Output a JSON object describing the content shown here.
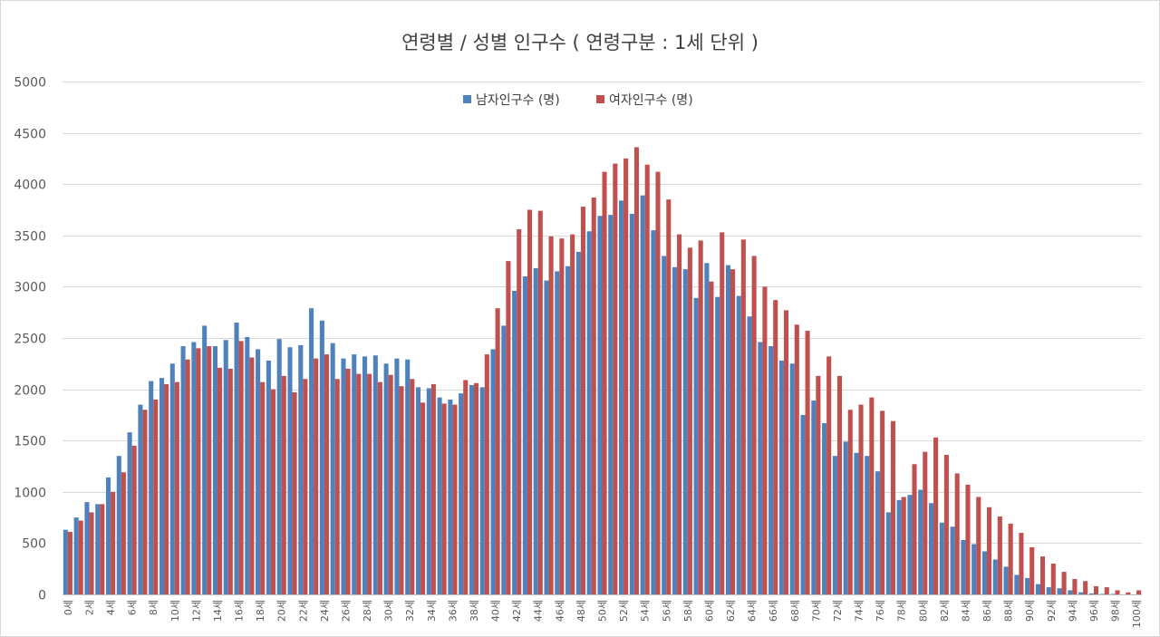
{
  "chart_data": {
    "type": "bar",
    "title": "연령별  / 성별 인구수 ( 연령구분 : 1세 단위 )",
    "xlabel": "",
    "ylabel": "",
    "ylim": [
      0,
      5000
    ],
    "y_ticks": [
      "0",
      "500",
      "1000",
      "1500",
      "2000",
      "2500",
      "3000",
      "3500",
      "4000",
      "4500",
      "5000"
    ],
    "y_tick_values": [
      0,
      500,
      1000,
      1500,
      2000,
      2500,
      3000,
      3500,
      4000,
      4500,
      5000
    ],
    "grid": true,
    "legend_position": "top-center",
    "categories": [
      "0세",
      "1세",
      "2세",
      "3세",
      "4세",
      "5세",
      "6세",
      "7세",
      "8세",
      "9세",
      "10세",
      "11세",
      "12세",
      "13세",
      "14세",
      "15세",
      "16세",
      "17세",
      "18세",
      "19세",
      "20세",
      "21세",
      "22세",
      "23세",
      "24세",
      "25세",
      "26세",
      "27세",
      "28세",
      "29세",
      "30세",
      "31세",
      "32세",
      "33세",
      "34세",
      "35세",
      "36세",
      "37세",
      "38세",
      "39세",
      "40세",
      "41세",
      "42세",
      "43세",
      "44세",
      "45세",
      "46세",
      "47세",
      "48세",
      "49세",
      "50세",
      "51세",
      "52세",
      "53세",
      "54세",
      "55세",
      "56세",
      "57세",
      "58세",
      "59세",
      "60세",
      "61세",
      "62세",
      "63세",
      "64세",
      "65세",
      "66세",
      "67세",
      "68세",
      "69세",
      "70세",
      "71세",
      "72세",
      "73세",
      "74세",
      "75세",
      "76세",
      "77세",
      "78세",
      "79세",
      "80세",
      "81세",
      "82세",
      "83세",
      "84세",
      "85세",
      "86세",
      "87세",
      "88세",
      "89세",
      "90세",
      "91세",
      "92세",
      "93세",
      "94세",
      "95세",
      "96세",
      "97세",
      "98세",
      "99세",
      "100세"
    ],
    "x_tick_labels": [
      "0세",
      "2세",
      "4세",
      "6세",
      "8세",
      "10세",
      "12세",
      "14세",
      "16세",
      "18세",
      "20세",
      "22세",
      "24세",
      "26세",
      "28세",
      "30세",
      "32세",
      "34세",
      "36세",
      "38세",
      "40세",
      "42세",
      "44세",
      "46세",
      "48세",
      "50세",
      "52세",
      "54세",
      "56세",
      "58세",
      "60세",
      "62세",
      "64세",
      "66세",
      "68세",
      "70세",
      "72세",
      "74세",
      "76세",
      "78세",
      "80세",
      "82세",
      "84세",
      "86세",
      "88세",
      "90세",
      "92세",
      "94세",
      "96세",
      "98세",
      "100세"
    ],
    "series": [
      {
        "name": "남자인구수 (명)",
        "color": "#4f81bd",
        "values": [
          630,
          750,
          900,
          880,
          1140,
          1350,
          1580,
          1850,
          2080,
          2110,
          2250,
          2420,
          2460,
          2620,
          2420,
          2480,
          2650,
          2510,
          2390,
          2280,
          2490,
          2410,
          2430,
          2790,
          2670,
          2450,
          2300,
          2340,
          2320,
          2330,
          2250,
          2300,
          2290,
          2020,
          2010,
          1920,
          1900,
          1960,
          2040,
          2020,
          2390,
          2620,
          2960,
          3100,
          3180,
          3060,
          3150,
          3200,
          3340,
          3540,
          3690,
          3700,
          3840,
          3710,
          3890,
          3550,
          3300,
          3190,
          3170,
          2890,
          3230,
          2900,
          3210,
          2910,
          2710,
          2460,
          2420,
          2280,
          2250,
          1750,
          1890,
          1670,
          1350,
          1490,
          1380,
          1350,
          1200,
          800,
          920,
          970,
          1020,
          890,
          700,
          660,
          530,
          490,
          420,
          340,
          270,
          190,
          160,
          100,
          70,
          60,
          40,
          20,
          10,
          5,
          5,
          0,
          0
        ]
      },
      {
        "name": "여자인구수 (명)",
        "color": "#c0504d",
        "values": [
          610,
          720,
          800,
          880,
          1000,
          1190,
          1450,
          1800,
          1900,
          2050,
          2070,
          2290,
          2400,
          2420,
          2210,
          2200,
          2470,
          2310,
          2070,
          2000,
          2130,
          1970,
          2100,
          2300,
          2340,
          2100,
          2200,
          2150,
          2150,
          2070,
          2140,
          2030,
          2100,
          1870,
          2050,
          1860,
          1850,
          2090,
          2060,
          2340,
          2790,
          3250,
          3560,
          3750,
          3740,
          3490,
          3470,
          3510,
          3780,
          3870,
          4120,
          4200,
          4250,
          4360,
          4190,
          4120,
          3850,
          3510,
          3380,
          3450,
          3050,
          3530,
          3170,
          3460,
          3300,
          3000,
          2870,
          2770,
          2630,
          2570,
          2130,
          2320,
          2130,
          1800,
          1850,
          1920,
          1790,
          1690,
          950,
          1270,
          1390,
          1530,
          1360,
          1180,
          1070,
          950,
          850,
          760,
          690,
          600,
          460,
          370,
          300,
          220,
          150,
          130,
          80,
          70,
          40,
          20,
          40
        ]
      }
    ]
  }
}
